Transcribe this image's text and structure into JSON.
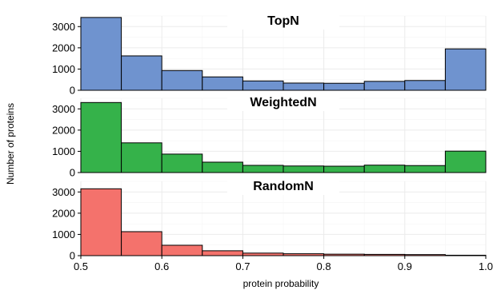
{
  "chart_data": {
    "type": "bar",
    "xlabel": "protein probability",
    "ylabel": "Number of proteins",
    "xlim": [
      0.5,
      1.0
    ],
    "x_ticks": [
      "0.5",
      "0.6",
      "0.7",
      "0.8",
      "0.9",
      "1.0"
    ],
    "ylim": [
      0,
      3500
    ],
    "y_ticks": [
      "0",
      "1000",
      "2000",
      "3000"
    ],
    "bin_edges": [
      0.5,
      0.55,
      0.6,
      0.65,
      0.7,
      0.75,
      0.8,
      0.85,
      0.9,
      0.95,
      1.0
    ],
    "grid": true,
    "legend": "none",
    "panels": [
      {
        "title": "TopN",
        "color": "#6f93cf",
        "values": [
          3430,
          1620,
          930,
          630,
          440,
          340,
          330,
          420,
          460,
          1950
        ]
      },
      {
        "title": "WeightedN",
        "color": "#35b24a",
        "values": [
          3300,
          1400,
          870,
          490,
          340,
          310,
          300,
          350,
          330,
          1010
        ]
      },
      {
        "title": "RandomN",
        "color": "#f4726c",
        "values": [
          3150,
          1130,
          490,
          230,
          120,
          90,
          70,
          60,
          50,
          20
        ]
      }
    ]
  }
}
